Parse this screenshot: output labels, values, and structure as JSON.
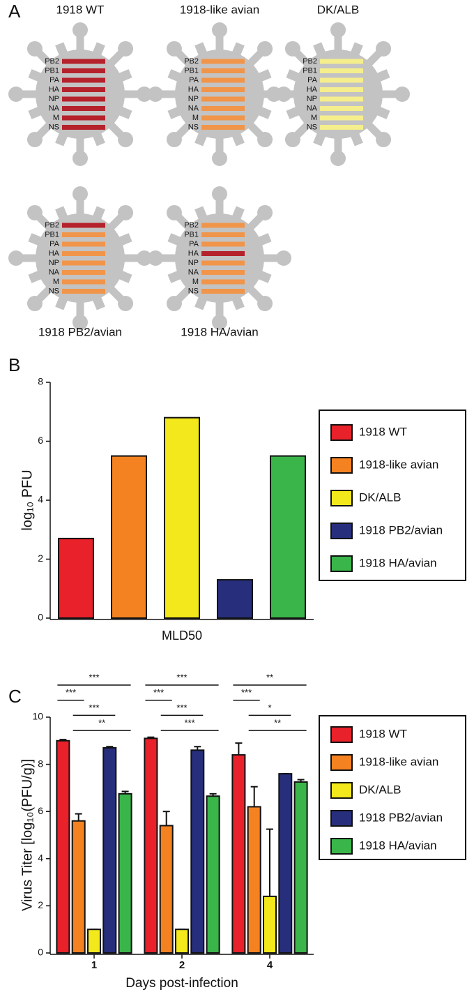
{
  "diagram": {
    "panel": "A",
    "segments": [
      "PB2",
      "PB1",
      "PA",
      "HA",
      "NP",
      "NA",
      "M",
      "NS"
    ],
    "viruses": [
      {
        "name": "1918 WT",
        "colors": [
          "#b5222b",
          "#b5222b",
          "#b5222b",
          "#b5222b",
          "#b5222b",
          "#b5222b",
          "#b5222b",
          "#b5222b"
        ]
      },
      {
        "name": "1918-like avian",
        "colors": [
          "#f0954a",
          "#f0954a",
          "#f0954a",
          "#f0954a",
          "#f0954a",
          "#f0954a",
          "#f0954a",
          "#f0954a"
        ]
      },
      {
        "name": "DK/ALB",
        "colors": [
          "#f5ee8c",
          "#f5ee8c",
          "#f5ee8c",
          "#f5ee8c",
          "#f5ee8c",
          "#f5ee8c",
          "#f5ee8c",
          "#f5ee8c"
        ]
      },
      {
        "name": "1918 PB2/avian",
        "colors": [
          "#b5222b",
          "#f0954a",
          "#f0954a",
          "#f0954a",
          "#f0954a",
          "#f0954a",
          "#f0954a",
          "#f0954a"
        ]
      },
      {
        "name": "1918 HA/avian",
        "colors": [
          "#f0954a",
          "#f0954a",
          "#f0954a",
          "#b5222b",
          "#f0954a",
          "#f0954a",
          "#f0954a",
          "#f0954a"
        ]
      }
    ]
  },
  "chart_data": [
    {
      "type": "bar",
      "panel": "B",
      "ylabel": "log₁₀ PFU",
      "categories": [
        "MLD50"
      ],
      "series": [
        {
          "name": "1918 WT",
          "color": "#e8212a",
          "values": [
            2.7
          ]
        },
        {
          "name": "1918-like avian",
          "color": "#f58220",
          "values": [
            5.5
          ]
        },
        {
          "name": "DK/ALB",
          "color": "#f2e81b",
          "values": [
            6.8
          ]
        },
        {
          "name": "1918 PB2/avian",
          "color": "#272f7d",
          "values": [
            1.3
          ]
        },
        {
          "name": "1918 HA/avian",
          "color": "#3ab54a",
          "values": [
            5.5
          ]
        }
      ],
      "ylim": [
        0,
        8
      ],
      "yticks": [
        0,
        2,
        4,
        6,
        8
      ],
      "legend": "right"
    },
    {
      "type": "bar",
      "panel": "C",
      "ylabel": "Virus Titer [log₁₀(PFU/g)]",
      "xlabel": "Days post-infection",
      "categories": [
        "1",
        "2",
        "4"
      ],
      "series": [
        {
          "name": "1918 WT",
          "color": "#e8212a",
          "values": [
            9.0,
            9.1,
            8.4
          ],
          "errors": [
            0.05,
            0.05,
            0.5
          ]
        },
        {
          "name": "1918-like avian",
          "color": "#f58220",
          "values": [
            5.6,
            5.4,
            6.2
          ],
          "errors": [
            0.3,
            0.6,
            0.85
          ]
        },
        {
          "name": "DK/ALB",
          "color": "#f2e81b",
          "values": [
            1.0,
            1.0,
            2.4
          ],
          "errors": [
            0,
            0,
            2.85
          ]
        },
        {
          "name": "1918 PB2/avian",
          "color": "#272f7d",
          "values": [
            8.7,
            8.6,
            7.6
          ],
          "errors": [
            0.05,
            0.15,
            0
          ]
        },
        {
          "name": "1918 HA/avian",
          "color": "#3ab54a",
          "values": [
            6.75,
            6.65,
            7.25
          ],
          "errors": [
            0.1,
            0.1,
            0.1
          ]
        }
      ],
      "significance": [
        [
          "***",
          "***",
          "***",
          "**"
        ],
        [
          "***",
          "***",
          "***",
          "***"
        ],
        [
          "**",
          "***",
          "*",
          "**"
        ]
      ],
      "ylim": [
        0,
        10
      ],
      "yticks": [
        0,
        2,
        4,
        6,
        8,
        10
      ],
      "legend": "right"
    }
  ]
}
